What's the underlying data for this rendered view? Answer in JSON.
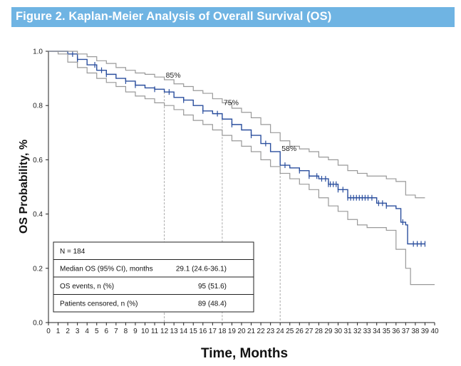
{
  "figure": {
    "title": "Figure 2. Kaplan-Meier Analysis of Overall Survival (OS)"
  },
  "colors": {
    "banner": "#6fb4e3",
    "km_curve": "#2b4f9e",
    "ci_band": "#999999"
  },
  "chart_data": {
    "type": "line",
    "title": "",
    "xlabel": "Time, Months",
    "ylabel": "OS Probability, %",
    "xlim": [
      0,
      40
    ],
    "ylim": [
      0,
      1.0
    ],
    "x_ticks": [
      0,
      1,
      2,
      3,
      4,
      5,
      6,
      7,
      8,
      9,
      10,
      11,
      12,
      13,
      14,
      15,
      16,
      17,
      18,
      19,
      20,
      21,
      22,
      23,
      24,
      25,
      26,
      27,
      28,
      29,
      30,
      31,
      32,
      33,
      34,
      35,
      36,
      37,
      38,
      39,
      40
    ],
    "y_ticks": [
      "0.0",
      "0.2",
      "0.4",
      "0.6",
      "0.8",
      "1.0"
    ],
    "grid": false,
    "series": [
      {
        "role": "estimate",
        "points": [
          [
            0,
            1.0
          ],
          [
            1,
            1.0
          ],
          [
            2,
            0.99
          ],
          [
            3,
            0.97
          ],
          [
            4,
            0.95
          ],
          [
            5,
            0.93
          ],
          [
            6,
            0.915
          ],
          [
            7,
            0.9
          ],
          [
            8,
            0.89
          ],
          [
            9,
            0.875
          ],
          [
            10,
            0.865
          ],
          [
            11,
            0.86
          ],
          [
            12,
            0.85
          ],
          [
            13,
            0.83
          ],
          [
            14,
            0.82
          ],
          [
            15,
            0.8
          ],
          [
            16,
            0.78
          ],
          [
            17,
            0.77
          ],
          [
            18,
            0.75
          ],
          [
            19,
            0.73
          ],
          [
            20,
            0.71
          ],
          [
            21,
            0.69
          ],
          [
            22,
            0.66
          ],
          [
            23,
            0.63
          ],
          [
            24,
            0.58
          ],
          [
            25,
            0.57
          ],
          [
            26,
            0.56
          ],
          [
            27,
            0.54
          ],
          [
            28,
            0.53
          ],
          [
            29,
            0.51
          ],
          [
            30,
            0.49
          ],
          [
            31,
            0.46
          ],
          [
            32,
            0.46
          ],
          [
            33,
            0.46
          ],
          [
            34,
            0.44
          ],
          [
            35,
            0.43
          ],
          [
            36,
            0.42
          ],
          [
            36.5,
            0.37
          ],
          [
            37,
            0.36
          ],
          [
            37.2,
            0.29
          ],
          [
            39,
            0.29
          ]
        ],
        "censor_x": [
          2.5,
          3,
          3,
          4.8,
          5.5,
          6,
          8,
          9,
          11,
          12.5,
          14,
          16,
          17.5,
          19,
          21,
          22.5,
          24.5,
          26,
          27,
          27.8,
          28.3,
          28.7,
          29,
          29.2,
          29.5,
          29.8,
          30,
          30.5,
          31,
          31.3,
          31.6,
          31.9,
          32.2,
          32.5,
          32.8,
          33.1,
          33.5,
          34.2,
          34.6,
          35,
          36.7,
          37.8,
          38.2,
          38.6,
          39
        ]
      },
      {
        "role": "upper-ci",
        "points": [
          [
            0,
            1.0
          ],
          [
            2,
            1.0
          ],
          [
            3,
            0.99
          ],
          [
            4,
            0.98
          ],
          [
            5,
            0.965
          ],
          [
            6,
            0.955
          ],
          [
            7,
            0.94
          ],
          [
            8,
            0.93
          ],
          [
            9,
            0.92
          ],
          [
            10,
            0.915
          ],
          [
            11,
            0.905
          ],
          [
            12,
            0.895
          ],
          [
            13,
            0.88
          ],
          [
            14,
            0.87
          ],
          [
            15,
            0.855
          ],
          [
            16,
            0.845
          ],
          [
            17,
            0.825
          ],
          [
            18,
            0.81
          ],
          [
            19,
            0.79
          ],
          [
            20,
            0.775
          ],
          [
            21,
            0.755
          ],
          [
            22,
            0.73
          ],
          [
            23,
            0.7
          ],
          [
            24,
            0.67
          ],
          [
            25,
            0.65
          ],
          [
            26,
            0.64
          ],
          [
            27,
            0.63
          ],
          [
            28,
            0.61
          ],
          [
            29,
            0.6
          ],
          [
            30,
            0.58
          ],
          [
            31,
            0.56
          ],
          [
            32,
            0.55
          ],
          [
            33,
            0.54
          ],
          [
            34,
            0.54
          ],
          [
            35,
            0.53
          ],
          [
            36,
            0.52
          ],
          [
            37,
            0.47
          ],
          [
            38,
            0.46
          ],
          [
            39,
            0.46
          ]
        ]
      },
      {
        "role": "lower-ci",
        "points": [
          [
            0,
            1.0
          ],
          [
            1,
            0.99
          ],
          [
            2,
            0.96
          ],
          [
            3,
            0.94
          ],
          [
            4,
            0.92
          ],
          [
            5,
            0.9
          ],
          [
            6,
            0.885
          ],
          [
            7,
            0.87
          ],
          [
            8,
            0.85
          ],
          [
            9,
            0.835
          ],
          [
            10,
            0.825
          ],
          [
            11,
            0.81
          ],
          [
            12,
            0.8
          ],
          [
            13,
            0.785
          ],
          [
            14,
            0.765
          ],
          [
            15,
            0.745
          ],
          [
            16,
            0.73
          ],
          [
            17,
            0.71
          ],
          [
            18,
            0.69
          ],
          [
            19,
            0.67
          ],
          [
            20,
            0.65
          ],
          [
            21,
            0.63
          ],
          [
            22,
            0.6
          ],
          [
            23,
            0.575
          ],
          [
            24,
            0.55
          ],
          [
            25,
            0.53
          ],
          [
            26,
            0.51
          ],
          [
            27,
            0.49
          ],
          [
            28,
            0.46
          ],
          [
            29,
            0.43
          ],
          [
            30,
            0.41
          ],
          [
            31,
            0.38
          ],
          [
            32,
            0.36
          ],
          [
            33,
            0.35
          ],
          [
            34,
            0.35
          ],
          [
            35,
            0.34
          ],
          [
            36,
            0.27
          ],
          [
            37,
            0.2
          ],
          [
            37.5,
            0.14
          ],
          [
            40,
            0.14
          ]
        ]
      }
    ],
    "annotations": [
      {
        "x": 12,
        "y": 0.85,
        "text": "85%"
      },
      {
        "x": 18,
        "y": 0.75,
        "text": "75%"
      },
      {
        "x": 24,
        "y": 0.58,
        "text": "58%"
      }
    ],
    "summary_table": [
      {
        "label": "N = 184",
        "value": ""
      },
      {
        "label": "Median OS (95% CI), months",
        "value": "29.1 (24.6-36.1)"
      },
      {
        "label": "OS events, n (%)",
        "value": "95 (51.6)"
      },
      {
        "label": "Patients censored, n (%)",
        "value": "89 (48.4)"
      }
    ]
  }
}
